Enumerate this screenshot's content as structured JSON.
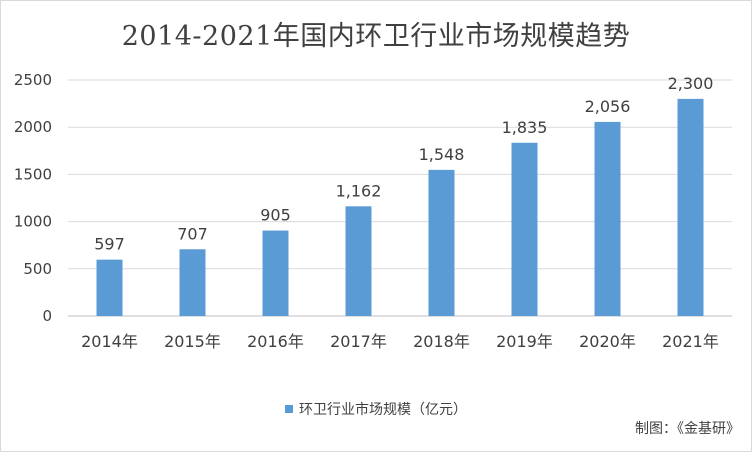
{
  "chart_data": {
    "type": "bar",
    "title": "2014-2021年国内环卫行业市场规模趋势",
    "categories": [
      "2014年",
      "2015年",
      "2016年",
      "2017年",
      "2018年",
      "2019年",
      "2020年",
      "2021年"
    ],
    "series": [
      {
        "name": "环卫行业市场规模（亿元）",
        "values": [
          597,
          707,
          905,
          1162,
          1548,
          1835,
          2056,
          2300
        ],
        "data_labels": [
          "597",
          "707",
          "905",
          "1,162",
          "1,548",
          "1,835",
          "2,056",
          "2,300"
        ],
        "color": "#5b9bd5"
      }
    ],
    "ylim": [
      0,
      2500
    ],
    "yticks": [
      "0",
      "500",
      "1000",
      "1500",
      "2000",
      "2500"
    ],
    "grid": true,
    "legend": "bottom"
  },
  "source_note": "制图：《金基研》",
  "colors": {
    "bar": "#5b9bd5",
    "grid": "#d9d9d9",
    "text": "#404040"
  }
}
